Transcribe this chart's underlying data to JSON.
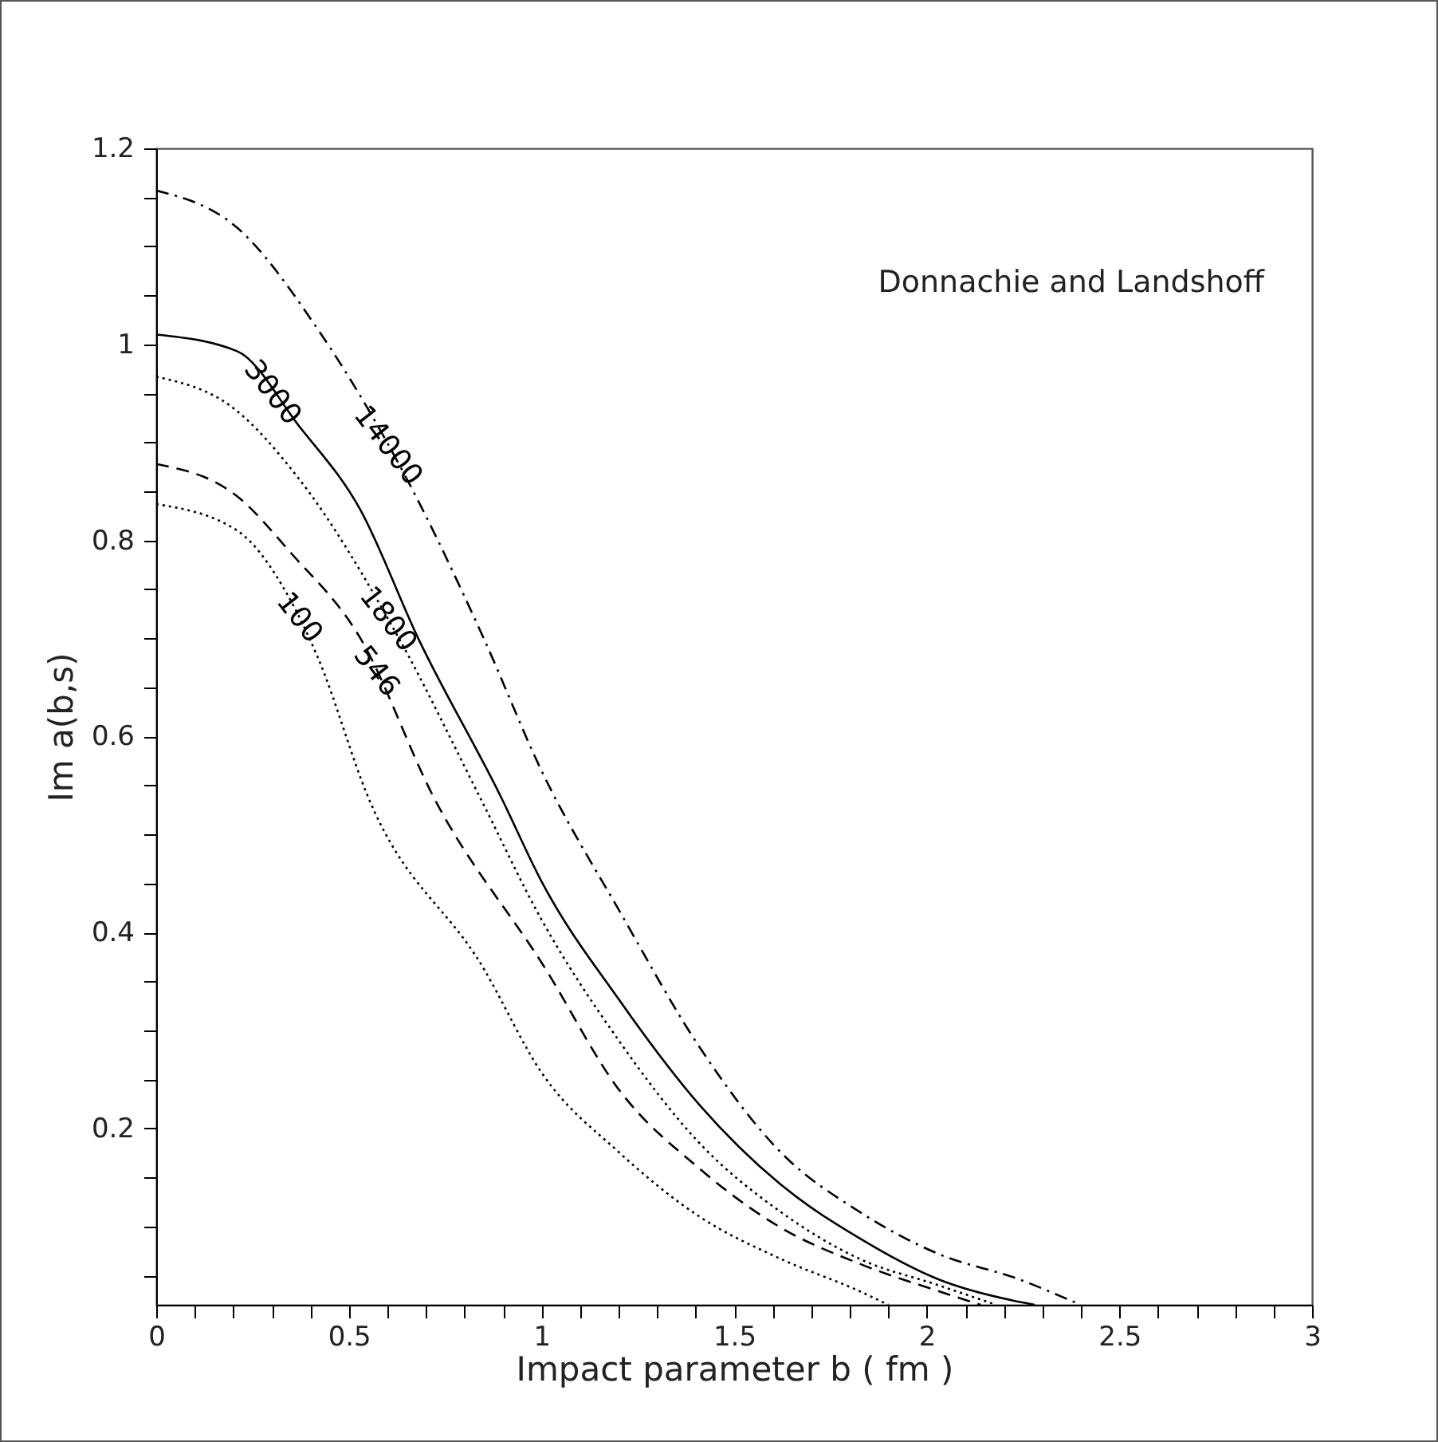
{
  "chart_data": {
    "type": "line",
    "xlabel": "Impact parameter  b ( fm )",
    "ylabel": "Im a(b,s)",
    "annotations": [
      "Donnachie and Landshoff"
    ],
    "xlim": [
      0,
      3
    ],
    "ylim": [
      0.02,
      1.2
    ],
    "xticks": [
      0,
      {
        "value": 0.1,
        "label": null
      },
      {
        "value": 0.2,
        "label": null
      },
      {
        "value": 0.3,
        "label": null
      },
      {
        "value": 0.4,
        "label": null
      },
      0.5,
      {
        "value": 0.6,
        "label": null
      },
      {
        "value": 0.7,
        "label": null
      },
      {
        "value": 0.8,
        "label": null
      },
      {
        "value": 0.9,
        "label": null
      },
      1,
      {
        "value": 1.1,
        "label": null
      },
      {
        "value": 1.2,
        "label": null
      },
      {
        "value": 1.3,
        "label": null
      },
      {
        "value": 1.4,
        "label": null
      },
      1.5,
      {
        "value": 1.6,
        "label": null
      },
      {
        "value": 1.7,
        "label": null
      },
      {
        "value": 1.8,
        "label": null
      },
      {
        "value": 1.9,
        "label": null
      },
      2,
      {
        "value": 2.1,
        "label": null
      },
      {
        "value": 2.2,
        "label": null
      },
      {
        "value": 2.3,
        "label": null
      },
      {
        "value": 2.4,
        "label": null
      },
      2.5,
      {
        "value": 2.6,
        "label": null
      },
      {
        "value": 2.7,
        "label": null
      },
      {
        "value": 2.8,
        "label": null
      },
      {
        "value": 2.9,
        "label": null
      },
      3
    ],
    "yticks": [
      {
        "value": 0.05,
        "label": null
      },
      {
        "value": 0.1,
        "label": null
      },
      {
        "value": 0.15,
        "label": null
      },
      0.2,
      {
        "value": 0.25,
        "label": null
      },
      {
        "value": 0.3,
        "label": null
      },
      {
        "value": 0.35,
        "label": null
      },
      0.4,
      {
        "value": 0.45,
        "label": null
      },
      {
        "value": 0.5,
        "label": null
      },
      {
        "value": 0.55,
        "label": null
      },
      0.6,
      {
        "value": 0.65,
        "label": null
      },
      {
        "value": 0.7,
        "label": null
      },
      {
        "value": 0.75,
        "label": null
      },
      0.8,
      {
        "value": 0.85,
        "label": null
      },
      {
        "value": 0.9,
        "label": null
      },
      {
        "value": 0.95,
        "label": null
      },
      1,
      {
        "value": 1.05,
        "label": null
      },
      {
        "value": 1.1,
        "label": null
      },
      {
        "value": 1.15,
        "label": null
      },
      1.2
    ],
    "grid": false,
    "legend": false,
    "marker": "none",
    "series": [
      {
        "name": "14000",
        "color": "#000000",
        "line_style": "dashdot",
        "x": [
          0,
          0.21,
          0.42,
          0.65,
          0.85,
          1.0,
          1.205,
          1.41,
          1.62,
          1.825,
          2.03,
          2.24,
          2.37,
          2.4
        ],
        "values": [
          1.157,
          1.119,
          1.015,
          0.863,
          0.7,
          0.565,
          0.42,
          0.283,
          0.176,
          0.115,
          0.072,
          0.046,
          0.025,
          0.02
        ]
      },
      {
        "name": "3000",
        "color": "#000000",
        "line_style": "solid",
        "x": [
          0,
          0.21,
          0.37,
          0.53,
          0.68,
          0.895,
          1.0,
          1.2,
          1.41,
          1.62,
          1.825,
          2.03,
          2.24,
          2.28
        ],
        "values": [
          1.01,
          0.993,
          0.917,
          0.831,
          0.7,
          0.538,
          0.452,
          0.332,
          0.224,
          0.143,
          0.088,
          0.046,
          0.023,
          0.02
        ]
      },
      {
        "name": "1800",
        "color": "#000000",
        "line_style": "dotted",
        "x": [
          0,
          0.2,
          0.37,
          0.63,
          0.84,
          1.0,
          1.2,
          1.41,
          1.62,
          1.825,
          2.03,
          2.18
        ],
        "values": [
          0.967,
          0.935,
          0.863,
          0.7,
          0.538,
          0.413,
          0.29,
          0.185,
          0.115,
          0.067,
          0.04,
          0.02
        ]
      },
      {
        "name": "546",
        "color": "#000000",
        "line_style": "dashed",
        "x": [
          0,
          0.21,
          0.35,
          0.53,
          0.72,
          1.01,
          1.2,
          1.41,
          1.62,
          1.825,
          2.03,
          2.14
        ],
        "values": [
          0.878,
          0.845,
          0.787,
          0.7,
          0.538,
          0.363,
          0.24,
          0.159,
          0.099,
          0.062,
          0.034,
          0.02
        ]
      },
      {
        "name": "100",
        "color": "#000000",
        "line_style": "dotted",
        "x": [
          0,
          0.21,
          0.34,
          0.42,
          0.55,
          0.85,
          1.0,
          1.2,
          1.41,
          1.62,
          1.825,
          1.9
        ],
        "values": [
          0.837,
          0.81,
          0.745,
          0.68,
          0.538,
          0.363,
          0.257,
          0.176,
          0.11,
          0.067,
          0.034,
          0.02
        ]
      }
    ]
  }
}
